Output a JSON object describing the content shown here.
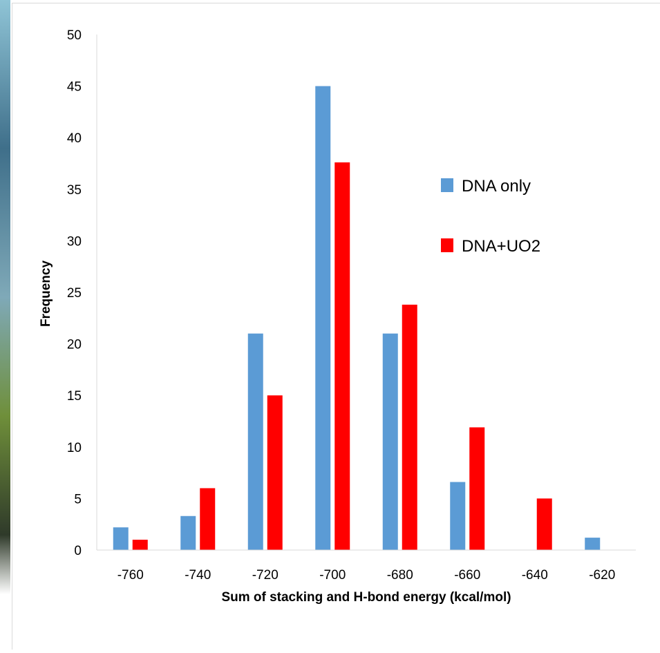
{
  "chart_data": {
    "type": "bar",
    "x_label": "Sum of stacking and H-bond energy (kcal/mol)",
    "y_label": "Frequency",
    "categories": [
      "-760",
      "-740",
      "-720",
      "-700",
      "-680",
      "-660",
      "-640",
      "-620"
    ],
    "series": [
      {
        "name": "DNA only",
        "color": "#5b9bd5",
        "values": [
          2.2,
          3.3,
          21,
          45,
          21,
          6.6,
          0,
          1.2
        ]
      },
      {
        "name": "DNA+UO2",
        "color": "#ff0000",
        "values": [
          1,
          6,
          15,
          37.6,
          23.8,
          11.9,
          5,
          0
        ]
      }
    ],
    "ylim": [
      0,
      50
    ],
    "yticks": [
      0,
      5,
      10,
      15,
      20,
      25,
      30,
      35,
      40,
      45,
      50
    ],
    "grid": false,
    "legend": "right"
  }
}
